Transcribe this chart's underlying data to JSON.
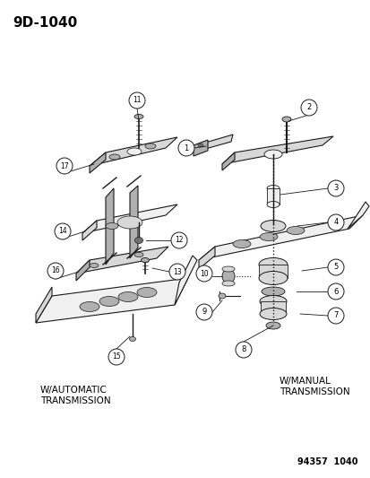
{
  "title": "9D-1040",
  "footer": "94357  1040",
  "bg_color": "#ffffff",
  "title_fontsize": 11,
  "footer_fontsize": 7,
  "auto_label": "W/AUTOMATIC\nTRANSMISSION",
  "manual_label": "W/MANUAL\nTRANSMISSION",
  "line_color": "#1a1a1a",
  "fill_light": "#f0f0f0",
  "fill_mid": "#d8d8d8",
  "fill_dark": "#b0b0b0",
  "fill_vdark": "#707070"
}
